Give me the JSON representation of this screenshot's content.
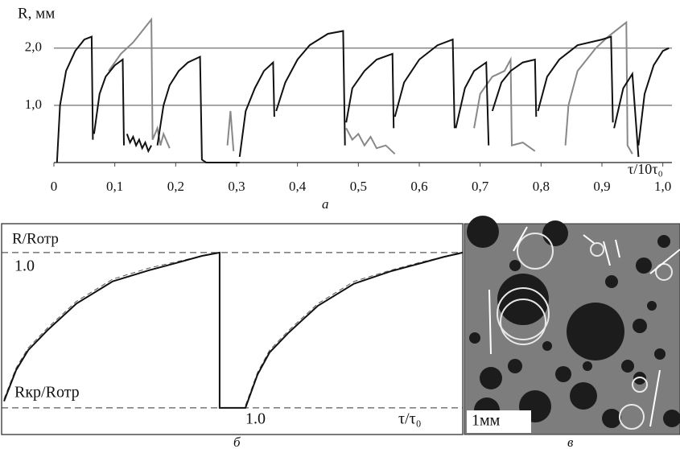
{
  "chart_data": [
    {
      "type": "line",
      "y_label": "R, мм",
      "x_label": "τ/10τ₀",
      "panel_label": "а",
      "xlim": [
        0,
        1.015
      ],
      "ylim": [
        0,
        2.63
      ],
      "xticks": [
        0,
        {
          "value": 0.1,
          "label": "0,1"
        },
        {
          "value": 0.2,
          "label": "0,2"
        },
        {
          "value": 0.3,
          "label": "0,3"
        },
        {
          "value": 0.4,
          "label": "0,4"
        },
        {
          "value": 0.5,
          "label": "0,5"
        },
        {
          "value": 0.6,
          "label": "0,6"
        },
        {
          "value": 0.7,
          "label": "0,7"
        },
        {
          "value": 0.8,
          "label": "0,8"
        },
        {
          "value": 0.9,
          "label": "0,9"
        },
        {
          "value": 1.0,
          "label": "1,0"
        }
      ],
      "yticks": [
        {
          "value": 1.0,
          "label": "1,0"
        },
        {
          "value": 2.0,
          "label": "2,0"
        }
      ],
      "grid": true,
      "series": [
        {
          "color": "#888888",
          "x": [
            0.09,
            0.11,
            0.13,
            0.16,
            0.162,
            0.17,
            0.175,
            0.18,
            0.19,
            null,
            0.285,
            0.29,
            0.295,
            null,
            0.48,
            0.49,
            0.5,
            0.51,
            0.52,
            0.53,
            0.545,
            0.56,
            null,
            0.69,
            0.7,
            0.72,
            0.74,
            0.75,
            0.752,
            0.77,
            0.79,
            null,
            0.84,
            0.845,
            0.86,
            0.89,
            0.91,
            0.94,
            0.942,
            0.95
          ],
          "values": [
            1.6,
            1.9,
            2.1,
            2.5,
            0.4,
            0.6,
            0.3,
            0.5,
            0.25,
            null,
            0.3,
            0.9,
            0.2,
            null,
            0.6,
            0.4,
            0.5,
            0.3,
            0.45,
            0.25,
            0.3,
            0.15,
            null,
            0.6,
            1.2,
            1.5,
            1.6,
            1.8,
            0.3,
            0.35,
            0.2,
            null,
            0.3,
            1.0,
            1.6,
            2.0,
            2.2,
            2.45,
            0.3,
            0.15
          ]
        },
        {
          "color": "#111111",
          "x": [
            0.005,
            0.01,
            0.02,
            0.035,
            0.05,
            0.062,
            0.064,
            null,
            0.066,
            0.075,
            0.085,
            0.1,
            0.113,
            0.115,
            null,
            0.12,
            0.125,
            0.13,
            0.135,
            0.14,
            0.145,
            0.15,
            0.155,
            0.16,
            null,
            0.17,
            0.18,
            0.19,
            0.205,
            0.22,
            0.24,
            0.243,
            0.25,
            0.305,
            null,
            0.305,
            0.315,
            0.33,
            0.345,
            0.36,
            0.362,
            null,
            0.365,
            0.38,
            0.4,
            0.42,
            0.45,
            0.475,
            0.478,
            null,
            0.48,
            0.49,
            0.51,
            0.53,
            0.556,
            0.558,
            null,
            0.56,
            0.575,
            0.6,
            0.63,
            0.655,
            0.658,
            null,
            0.66,
            0.675,
            0.69,
            0.71,
            0.714,
            null,
            0.72,
            0.735,
            0.75,
            0.77,
            0.79,
            0.792,
            null,
            0.795,
            0.81,
            0.83,
            0.86,
            0.9,
            0.915,
            0.918,
            null,
            0.92,
            0.935,
            0.95,
            0.96,
            null,
            0.96,
            0.97,
            0.985,
            1.0,
            1.01
          ],
          "values": [
            0,
            1.0,
            1.6,
            1.95,
            2.15,
            2.2,
            0.4,
            null,
            0.5,
            1.2,
            1.5,
            1.7,
            1.8,
            0.3,
            null,
            0.5,
            0.35,
            0.45,
            0.3,
            0.4,
            0.25,
            0.35,
            0.2,
            0.3,
            null,
            0.3,
            1.0,
            1.35,
            1.6,
            1.75,
            1.85,
            0.05,
            0,
            0,
            null,
            0.1,
            0.9,
            1.3,
            1.6,
            1.75,
            0.8,
            null,
            0.9,
            1.4,
            1.8,
            2.05,
            2.25,
            2.3,
            0.3,
            null,
            0.7,
            1.3,
            1.6,
            1.8,
            1.9,
            0.6,
            null,
            0.8,
            1.4,
            1.8,
            2.05,
            2.15,
            0.6,
            null,
            0.6,
            1.3,
            1.6,
            1.75,
            0.3,
            null,
            0.9,
            1.4,
            1.6,
            1.75,
            1.8,
            0.8,
            null,
            0.9,
            1.5,
            1.8,
            2.05,
            2.15,
            2.2,
            0.7,
            null,
            0.6,
            1.3,
            1.55,
            0.1,
            null,
            0.3,
            1.2,
            1.7,
            1.95,
            2.0
          ]
        }
      ]
    },
    {
      "type": "line",
      "y_label": "R/Rотр",
      "x_label": "τ/τ₀",
      "panel_label": "б",
      "xlim": [
        -0.01,
        1.9
      ],
      "ylim": [
        0.18,
        1.13
      ],
      "xticks": [
        {
          "value": 1.0,
          "label": "1.0"
        }
      ],
      "yticks": [
        {
          "value": 1.0,
          "label": "1.0"
        },
        {
          "value": 0.3,
          "label": "Rкр/Rотр"
        }
      ],
      "grid": true,
      "series": [
        {
          "color": "#555555",
          "dashed": true,
          "x": [
            0,
            0.05,
            0.1,
            0.18,
            0.3,
            0.45,
            0.6,
            0.72,
            0.82,
            0.893,
            null,
            1.0,
            1.05,
            1.1,
            1.18,
            1.3,
            1.45,
            1.6,
            1.72,
            1.82,
            1.893
          ],
          "values": [
            0.34,
            0.48,
            0.57,
            0.66,
            0.78,
            0.88,
            0.93,
            0.96,
            0.985,
            1.0,
            null,
            0.31,
            0.46,
            0.56,
            0.65,
            0.77,
            0.87,
            0.92,
            0.955,
            0.98,
            0.995
          ]
        },
        {
          "color": "#111111",
          "x": [
            0,
            0.05,
            0.1,
            0.18,
            0.3,
            0.45,
            0.6,
            0.72,
            0.82,
            0.893,
            0.893,
            1.0,
            1.05,
            1.1,
            1.18,
            1.3,
            1.45,
            1.6,
            1.72,
            1.82,
            1.9
          ],
          "values": [
            0.33,
            0.47,
            0.56,
            0.65,
            0.77,
            0.87,
            0.92,
            0.955,
            0.985,
            1.0,
            0.3,
            0.3,
            0.45,
            0.55,
            0.64,
            0.76,
            0.86,
            0.915,
            0.95,
            0.98,
            1.0
          ]
        }
      ]
    }
  ],
  "photo": {
    "scale_label": "1мм",
    "panel_label": "в"
  }
}
